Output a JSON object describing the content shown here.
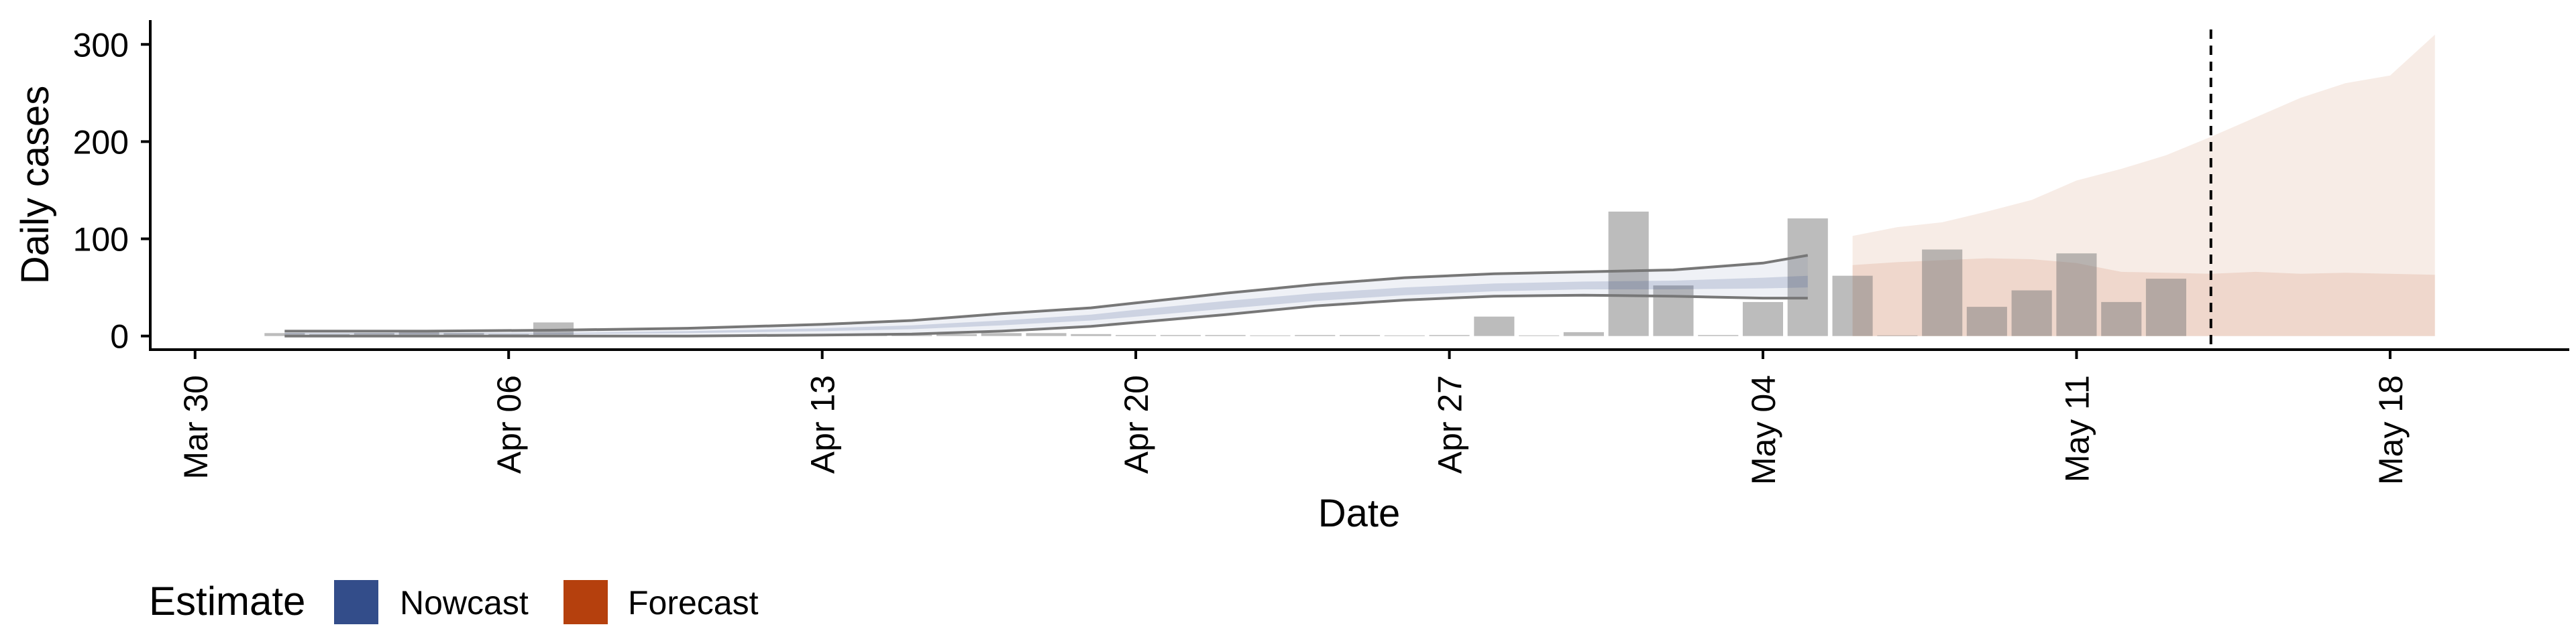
{
  "chart_data": {
    "type": "bar",
    "xlabel": "Date",
    "ylabel": "Daily cases",
    "x_range": [
      "2020-03-29",
      "2020-05-22"
    ],
    "ylim": [
      -14,
      325
    ],
    "y_ticks": [
      0,
      100,
      200,
      300
    ],
    "x_ticks": [
      {
        "date": "2020-03-30",
        "label": "Mar 30"
      },
      {
        "date": "2020-04-06",
        "label": "Apr 06"
      },
      {
        "date": "2020-04-13",
        "label": "Apr 13"
      },
      {
        "date": "2020-04-20",
        "label": "Apr 20"
      },
      {
        "date": "2020-04-27",
        "label": "Apr 27"
      },
      {
        "date": "2020-05-04",
        "label": "May 04"
      },
      {
        "date": "2020-05-11",
        "label": "May 11"
      },
      {
        "date": "2020-05-18",
        "label": "May 18"
      }
    ],
    "grid": false,
    "forecast_start_marker": "2020-05-14",
    "reported_cases": {
      "dates": [
        "2020-04-01",
        "2020-04-02",
        "2020-04-03",
        "2020-04-04",
        "2020-04-05",
        "2020-04-06",
        "2020-04-07",
        "2020-04-08",
        "2020-04-09",
        "2020-04-10",
        "2020-04-11",
        "2020-04-12",
        "2020-04-13",
        "2020-04-14",
        "2020-04-15",
        "2020-04-16",
        "2020-04-17",
        "2020-04-18",
        "2020-04-19",
        "2020-04-20",
        "2020-04-21",
        "2020-04-22",
        "2020-04-23",
        "2020-04-24",
        "2020-04-25",
        "2020-04-26",
        "2020-04-27",
        "2020-04-28",
        "2020-04-29",
        "2020-04-30",
        "2020-05-01",
        "2020-05-02",
        "2020-05-03",
        "2020-05-04",
        "2020-05-05",
        "2020-05-06",
        "2020-05-07",
        "2020-05-08",
        "2020-05-09",
        "2020-05-10",
        "2020-05-11",
        "2020-05-12",
        "2020-05-13"
      ],
      "values": [
        3,
        2,
        3,
        4,
        3,
        2,
        14,
        1,
        1,
        1,
        1,
        2,
        2,
        1,
        1,
        2,
        3,
        3,
        2,
        1,
        1,
        1,
        0,
        1,
        1,
        0,
        1,
        20,
        0,
        4,
        128,
        52,
        1,
        35,
        121,
        62,
        0,
        89,
        30,
        47,
        85,
        35,
        59
      ]
    },
    "series": [
      {
        "name": "Nowcast",
        "color": "#334d8a",
        "dates": [
          "2020-04-01",
          "2020-04-04",
          "2020-04-07",
          "2020-04-10",
          "2020-04-13",
          "2020-04-15",
          "2020-04-17",
          "2020-04-19",
          "2020-04-20",
          "2020-04-22",
          "2020-04-24",
          "2020-04-26",
          "2020-04-28",
          "2020-04-30",
          "2020-05-02",
          "2020-05-04",
          "2020-05-05"
        ],
        "outer_upper": [
          5,
          5,
          6,
          8,
          12,
          16,
          23,
          29,
          34,
          44,
          53,
          60,
          64,
          66,
          68,
          75,
          83
        ],
        "outer_lower": [
          0,
          0,
          0,
          0,
          1,
          2,
          5,
          10,
          14,
          22,
          31,
          37,
          41,
          42,
          41,
          39,
          39
        ],
        "inner_upper": [
          3,
          3,
          3,
          5,
          8,
          11,
          16,
          22,
          27,
          36,
          44,
          50,
          54,
          56,
          57,
          60,
          62
        ],
        "inner_lower": [
          2,
          2,
          2,
          3,
          5,
          7,
          11,
          16,
          20,
          28,
          36,
          42,
          46,
          48,
          48,
          49,
          50
        ]
      },
      {
        "name": "Forecast",
        "color": "#b5400d",
        "dates": [
          "2020-05-06",
          "2020-05-07",
          "2020-05-08",
          "2020-05-09",
          "2020-05-10",
          "2020-05-11",
          "2020-05-12",
          "2020-05-13",
          "2020-05-14",
          "2020-05-15",
          "2020-05-16",
          "2020-05-17",
          "2020-05-18",
          "2020-05-19"
        ],
        "outer_upper": [
          103,
          112,
          117,
          128,
          140,
          160,
          172,
          186,
          205,
          225,
          245,
          260,
          268,
          310
        ],
        "outer_lower": [
          0,
          0,
          0,
          0,
          0,
          0,
          0,
          0,
          0,
          0,
          0,
          0,
          0,
          0
        ],
        "inner_upper": [
          73,
          76,
          78,
          80,
          79,
          75,
          66,
          65,
          64,
          66,
          64,
          65,
          64,
          63
        ],
        "inner_lower": [
          0,
          0,
          0,
          0,
          0,
          0,
          0,
          0,
          0,
          0,
          0,
          0,
          0,
          0
        ]
      }
    ]
  },
  "legend": {
    "title": "Estimate",
    "items": [
      {
        "label": "Nowcast",
        "color": "#334d8a"
      },
      {
        "label": "Forecast",
        "color": "#b5400d"
      }
    ]
  }
}
